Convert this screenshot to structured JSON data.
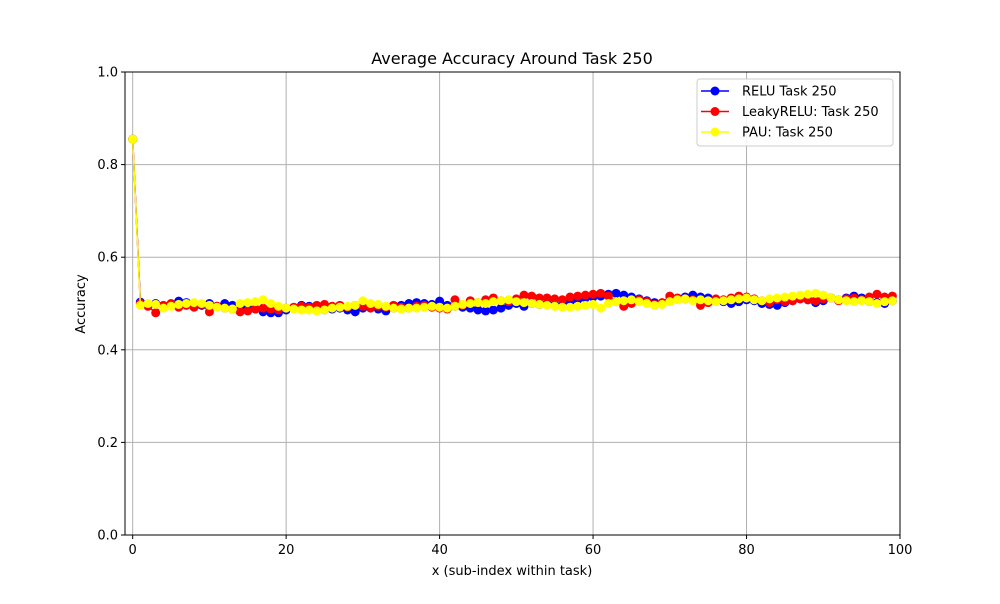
{
  "chart_data": {
    "type": "line",
    "title": "Average Accuracy Around Task 250",
    "xlabel": "x (sub-index within task)",
    "ylabel": "Accuracy",
    "xlim": [
      -1,
      100
    ],
    "ylim": [
      0,
      1
    ],
    "xticks": [
      0,
      20,
      40,
      60,
      80,
      100
    ],
    "yticks": [
      0.0,
      0.2,
      0.4,
      0.6,
      0.8,
      1.0
    ],
    "xtick_labels": [
      "0",
      "20",
      "40",
      "60",
      "80",
      "100"
    ],
    "ytick_labels": [
      "0.0",
      "0.2",
      "0.4",
      "0.6",
      "0.8",
      "1.0"
    ],
    "grid": true,
    "legend_position": "top-right",
    "x": [
      0,
      1,
      2,
      3,
      4,
      5,
      6,
      7,
      8,
      9,
      10,
      11,
      12,
      13,
      14,
      15,
      16,
      17,
      18,
      19,
      20,
      21,
      22,
      23,
      24,
      25,
      26,
      27,
      28,
      29,
      30,
      31,
      32,
      33,
      34,
      35,
      36,
      37,
      38,
      39,
      40,
      41,
      42,
      43,
      44,
      45,
      46,
      47,
      48,
      49,
      50,
      51,
      52,
      53,
      54,
      55,
      56,
      57,
      58,
      59,
      60,
      61,
      62,
      63,
      64,
      65,
      66,
      67,
      68,
      69,
      70,
      71,
      72,
      73,
      74,
      75,
      76,
      77,
      78,
      79,
      80,
      81,
      82,
      83,
      84,
      85,
      86,
      87,
      88,
      89,
      90,
      91,
      92,
      93,
      94,
      95,
      96,
      97,
      98,
      99
    ],
    "series": [
      {
        "name": "RELU Task 250",
        "color": "#0000ff",
        "values": [
          0.855,
          0.503,
          0.497,
          0.5,
          0.495,
          0.498,
          0.505,
          0.502,
          0.498,
          0.496,
          0.5,
          0.494,
          0.5,
          0.496,
          0.492,
          0.49,
          0.488,
          0.482,
          0.48,
          0.48,
          0.486,
          0.49,
          0.496,
          0.494,
          0.49,
          0.486,
          0.488,
          0.49,
          0.486,
          0.482,
          0.49,
          0.492,
          0.488,
          0.484,
          0.49,
          0.496,
          0.5,
          0.502,
          0.5,
          0.498,
          0.505,
          0.496,
          0.494,
          0.492,
          0.49,
          0.486,
          0.484,
          0.486,
          0.49,
          0.496,
          0.5,
          0.494,
          0.5,
          0.498,
          0.5,
          0.496,
          0.498,
          0.504,
          0.508,
          0.512,
          0.514,
          0.516,
          0.52,
          0.522,
          0.518,
          0.514,
          0.51,
          0.506,
          0.502,
          0.5,
          0.506,
          0.51,
          0.514,
          0.518,
          0.514,
          0.512,
          0.508,
          0.504,
          0.5,
          0.504,
          0.508,
          0.506,
          0.5,
          0.498,
          0.496,
          0.502,
          0.506,
          0.51,
          0.508,
          0.502,
          0.506,
          0.512,
          0.508,
          0.512,
          0.516,
          0.512,
          0.504,
          0.502,
          0.5,
          0.506
        ]
      },
      {
        "name": "LeakyRELU: Task 250",
        "color": "#ff0000",
        "values": [
          0.855,
          0.5,
          0.494,
          0.48,
          0.496,
          0.5,
          0.492,
          0.496,
          0.492,
          0.498,
          0.482,
          0.494,
          0.49,
          0.488,
          0.482,
          0.484,
          0.488,
          0.49,
          0.488,
          0.486,
          0.49,
          0.492,
          0.494,
          0.492,
          0.496,
          0.498,
          0.494,
          0.496,
          0.492,
          0.496,
          0.494,
          0.49,
          0.494,
          0.492,
          0.496,
          0.492,
          0.49,
          0.494,
          0.496,
          0.492,
          0.49,
          0.488,
          0.508,
          0.496,
          0.506,
          0.502,
          0.508,
          0.512,
          0.506,
          0.504,
          0.51,
          0.518,
          0.516,
          0.512,
          0.512,
          0.51,
          0.508,
          0.514,
          0.516,
          0.518,
          0.52,
          0.522,
          0.516,
          0.504,
          0.494,
          0.5,
          0.508,
          0.504,
          0.498,
          0.502,
          0.516,
          0.512,
          0.51,
          0.508,
          0.496,
          0.502,
          0.51,
          0.508,
          0.512,
          0.516,
          0.514,
          0.51,
          0.506,
          0.502,
          0.508,
          0.504,
          0.506,
          0.51,
          0.508,
          0.506,
          0.51,
          0.512,
          0.506,
          0.51,
          0.512,
          0.508,
          0.514,
          0.52,
          0.514,
          0.516
        ]
      },
      {
        "name": "PAU: Task 250",
        "color": "#ffff00",
        "values": [
          0.855,
          0.496,
          0.5,
          0.498,
          0.49,
          0.494,
          0.498,
          0.5,
          0.502,
          0.5,
          0.496,
          0.492,
          0.49,
          0.488,
          0.5,
          0.502,
          0.504,
          0.508,
          0.5,
          0.494,
          0.49,
          0.488,
          0.486,
          0.486,
          0.484,
          0.486,
          0.49,
          0.492,
          0.494,
          0.496,
          0.506,
          0.5,
          0.498,
          0.494,
          0.49,
          0.488,
          0.49,
          0.49,
          0.492,
          0.494,
          0.492,
          0.49,
          0.494,
          0.498,
          0.5,
          0.502,
          0.5,
          0.504,
          0.506,
          0.508,
          0.504,
          0.502,
          0.5,
          0.498,
          0.496,
          0.494,
          0.492,
          0.492,
          0.494,
          0.496,
          0.498,
          0.49,
          0.5,
          0.504,
          0.506,
          0.508,
          0.504,
          0.5,
          0.496,
          0.498,
          0.504,
          0.508,
          0.51,
          0.506,
          0.508,
          0.506,
          0.504,
          0.506,
          0.508,
          0.51,
          0.512,
          0.508,
          0.506,
          0.51,
          0.512,
          0.514,
          0.516,
          0.518,
          0.52,
          0.522,
          0.518,
          0.512,
          0.508,
          0.506,
          0.504,
          0.506,
          0.504,
          0.5,
          0.504,
          0.506
        ]
      }
    ]
  }
}
